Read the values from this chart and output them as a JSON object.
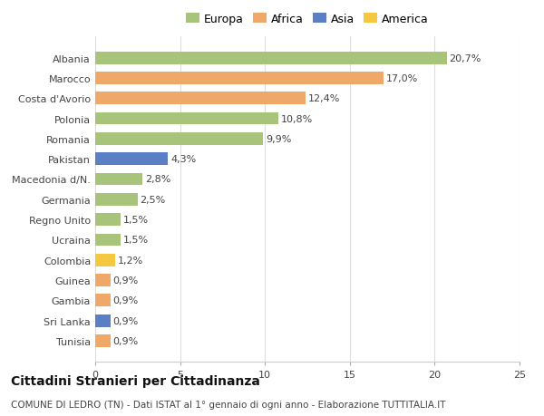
{
  "categories": [
    "Tunisia",
    "Sri Lanka",
    "Gambia",
    "Guinea",
    "Colombia",
    "Ucraina",
    "Regno Unito",
    "Germania",
    "Macedonia d/N.",
    "Pakistan",
    "Romania",
    "Polonia",
    "Costa d'Avorio",
    "Marocco",
    "Albania"
  ],
  "values": [
    0.9,
    0.9,
    0.9,
    0.9,
    1.2,
    1.5,
    1.5,
    2.5,
    2.8,
    4.3,
    9.9,
    10.8,
    12.4,
    17.0,
    20.7
  ],
  "labels": [
    "0,9%",
    "0,9%",
    "0,9%",
    "0,9%",
    "1,2%",
    "1,5%",
    "1,5%",
    "2,5%",
    "2,8%",
    "4,3%",
    "9,9%",
    "10,8%",
    "12,4%",
    "17,0%",
    "20,7%"
  ],
  "colors": [
    "#f0a868",
    "#5b7fc4",
    "#f0a868",
    "#f0a868",
    "#f5c842",
    "#a8c47a",
    "#a8c47a",
    "#a8c47a",
    "#a8c47a",
    "#5b7fc4",
    "#a8c47a",
    "#a8c47a",
    "#f0a868",
    "#f0a868",
    "#a8c47a"
  ],
  "legend": [
    {
      "label": "Europa",
      "color": "#a8c47a"
    },
    {
      "label": "Africa",
      "color": "#f0a868"
    },
    {
      "label": "Asia",
      "color": "#5b7fc4"
    },
    {
      "label": "America",
      "color": "#f5c842"
    }
  ],
  "xlim": [
    0,
    25
  ],
  "xticks": [
    0,
    5,
    10,
    15,
    20,
    25
  ],
  "title": "Cittadini Stranieri per Cittadinanza",
  "subtitle": "COMUNE DI LEDRO (TN) - Dati ISTAT al 1° gennaio di ogni anno - Elaborazione TUTTITALIA.IT",
  "background_color": "#ffffff",
  "bar_height": 0.62,
  "grid_color": "#dddddd",
  "title_fontsize": 10,
  "subtitle_fontsize": 7.5,
  "label_fontsize": 8,
  "tick_fontsize": 8
}
